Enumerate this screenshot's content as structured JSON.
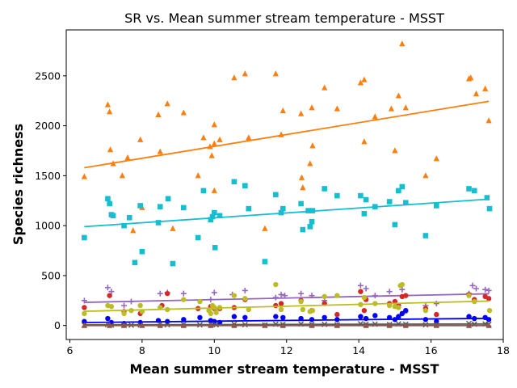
{
  "chart_data": {
    "type": "scatter",
    "title": "SR vs. Mean summer stream temperature - MSST",
    "xlabel": "Mean summer stream temperature - MSST",
    "ylabel": "Species richness",
    "xlim": [
      5.9,
      18.0
    ],
    "ylim": [
      -140,
      2960
    ],
    "xticks": [
      6,
      8,
      10,
      12,
      14,
      16,
      18
    ],
    "yticks": [
      0,
      500,
      1000,
      1500,
      2000,
      2500
    ],
    "grid": false,
    "legend": "none",
    "series": [
      {
        "marker": "triangle",
        "color": "#ff7f0e",
        "points": [
          [
            6.4,
            1490
          ],
          [
            7.05,
            2210
          ],
          [
            7.1,
            2140
          ],
          [
            7.12,
            1760
          ],
          [
            7.2,
            1620
          ],
          [
            7.45,
            1500
          ],
          [
            7.6,
            1680
          ],
          [
            7.75,
            950
          ],
          [
            7.95,
            1860
          ],
          [
            8.0,
            1180
          ],
          [
            8.45,
            2110
          ],
          [
            8.5,
            1740
          ],
          [
            8.7,
            2220
          ],
          [
            8.85,
            970
          ],
          [
            9.15,
            2130
          ],
          [
            9.55,
            1500
          ],
          [
            9.7,
            1880
          ],
          [
            9.88,
            1790
          ],
          [
            9.93,
            1700
          ],
          [
            10.0,
            2010
          ],
          [
            10.0,
            1820
          ],
          [
            10.0,
            1350
          ],
          [
            10.15,
            1860
          ],
          [
            10.55,
            2480
          ],
          [
            10.85,
            2520
          ],
          [
            10.95,
            1880
          ],
          [
            11.4,
            970
          ],
          [
            11.7,
            2520
          ],
          [
            11.85,
            1910
          ],
          [
            11.9,
            2150
          ],
          [
            12.4,
            2120
          ],
          [
            12.42,
            1480
          ],
          [
            12.45,
            1380
          ],
          [
            12.65,
            1620
          ],
          [
            12.72,
            1800
          ],
          [
            12.7,
            2180
          ],
          [
            13.05,
            2380
          ],
          [
            13.4,
            2170
          ],
          [
            14.05,
            2430
          ],
          [
            14.15,
            2460
          ],
          [
            14.15,
            1840
          ],
          [
            14.45,
            2090
          ],
          [
            14.9,
            2170
          ],
          [
            15.0,
            1750
          ],
          [
            15.1,
            2300
          ],
          [
            15.2,
            2820
          ],
          [
            15.3,
            2180
          ],
          [
            15.85,
            1500
          ],
          [
            16.15,
            1670
          ],
          [
            17.05,
            2470
          ],
          [
            17.1,
            2480
          ],
          [
            17.25,
            2320
          ],
          [
            17.5,
            2370
          ],
          [
            17.6,
            2050
          ]
        ],
        "trend": [
          [
            6.4,
            1580
          ],
          [
            17.6,
            2245
          ]
        ]
      },
      {
        "marker": "square",
        "color": "#17becf",
        "points": [
          [
            6.4,
            880
          ],
          [
            7.05,
            1270
          ],
          [
            7.1,
            1220
          ],
          [
            7.15,
            1110
          ],
          [
            7.2,
            1100
          ],
          [
            7.5,
            1000
          ],
          [
            7.65,
            1080
          ],
          [
            7.8,
            630
          ],
          [
            7.95,
            1200
          ],
          [
            8.0,
            740
          ],
          [
            8.45,
            1030
          ],
          [
            8.5,
            1190
          ],
          [
            8.72,
            1270
          ],
          [
            8.85,
            620
          ],
          [
            9.15,
            1180
          ],
          [
            9.55,
            880
          ],
          [
            9.7,
            1350
          ],
          [
            9.9,
            1060
          ],
          [
            9.95,
            1090
          ],
          [
            10.0,
            1130
          ],
          [
            10.02,
            780
          ],
          [
            10.15,
            1100
          ],
          [
            10.55,
            1440
          ],
          [
            10.85,
            1400
          ],
          [
            10.95,
            1170
          ],
          [
            11.4,
            640
          ],
          [
            11.7,
            1310
          ],
          [
            11.85,
            1130
          ],
          [
            11.9,
            1170
          ],
          [
            12.4,
            1220
          ],
          [
            12.45,
            960
          ],
          [
            12.6,
            1150
          ],
          [
            12.65,
            990
          ],
          [
            12.7,
            1040
          ],
          [
            12.72,
            1150
          ],
          [
            13.05,
            1370
          ],
          [
            13.4,
            1300
          ],
          [
            14.05,
            1300
          ],
          [
            14.15,
            1120
          ],
          [
            14.2,
            1260
          ],
          [
            14.45,
            1190
          ],
          [
            14.85,
            1240
          ],
          [
            15.0,
            1010
          ],
          [
            15.1,
            1350
          ],
          [
            15.2,
            1390
          ],
          [
            15.3,
            1230
          ],
          [
            15.85,
            900
          ],
          [
            16.15,
            1200
          ],
          [
            17.05,
            1370
          ],
          [
            17.2,
            1350
          ],
          [
            17.55,
            1280
          ],
          [
            17.62,
            1170
          ]
        ],
        "trend": [
          [
            6.4,
            990
          ],
          [
            17.6,
            1265
          ]
        ]
      },
      {
        "marker": "plus",
        "color": "#9467bd",
        "points": [
          [
            6.4,
            250
          ],
          [
            7.05,
            380
          ],
          [
            7.15,
            340
          ],
          [
            7.5,
            200
          ],
          [
            7.7,
            240
          ],
          [
            8.5,
            320
          ],
          [
            8.7,
            330
          ],
          [
            9.15,
            320
          ],
          [
            9.9,
            260
          ],
          [
            10.0,
            330
          ],
          [
            10.5,
            310
          ],
          [
            10.85,
            350
          ],
          [
            11.7,
            280
          ],
          [
            11.85,
            310
          ],
          [
            11.95,
            300
          ],
          [
            12.4,
            320
          ],
          [
            12.7,
            300
          ],
          [
            13.05,
            250
          ],
          [
            14.05,
            400
          ],
          [
            14.2,
            370
          ],
          [
            14.45,
            300
          ],
          [
            14.85,
            340
          ],
          [
            15.2,
            360
          ],
          [
            15.85,
            200
          ],
          [
            16.15,
            220
          ],
          [
            17.05,
            320
          ],
          [
            17.15,
            400
          ],
          [
            17.25,
            370
          ],
          [
            17.5,
            360
          ],
          [
            17.6,
            350
          ]
        ],
        "trend": [
          [
            6.4,
            232
          ],
          [
            17.6,
            318
          ]
        ]
      },
      {
        "marker": "circle",
        "color": "#d62728",
        "points": [
          [
            6.4,
            180
          ],
          [
            7.1,
            300
          ],
          [
            7.5,
            140
          ],
          [
            7.95,
            120
          ],
          [
            8.55,
            200
          ],
          [
            8.7,
            320
          ],
          [
            9.55,
            170
          ],
          [
            9.9,
            190
          ],
          [
            10.0,
            170
          ],
          [
            10.15,
            170
          ],
          [
            10.55,
            180
          ],
          [
            10.85,
            260
          ],
          [
            11.7,
            200
          ],
          [
            11.85,
            220
          ],
          [
            12.4,
            250
          ],
          [
            12.7,
            150
          ],
          [
            13.05,
            220
          ],
          [
            13.4,
            110
          ],
          [
            14.05,
            340
          ],
          [
            14.15,
            150
          ],
          [
            14.2,
            260
          ],
          [
            14.85,
            220
          ],
          [
            15.0,
            240
          ],
          [
            15.1,
            200
          ],
          [
            15.2,
            290
          ],
          [
            15.3,
            300
          ],
          [
            15.85,
            170
          ],
          [
            16.15,
            110
          ],
          [
            17.05,
            310
          ],
          [
            17.2,
            260
          ],
          [
            17.5,
            290
          ],
          [
            17.6,
            270
          ]
        ],
        "trend": []
      },
      {
        "marker": "circle",
        "color": "#bcbd22",
        "points": [
          [
            6.4,
            120
          ],
          [
            7.05,
            200
          ],
          [
            7.15,
            190
          ],
          [
            7.5,
            120
          ],
          [
            7.7,
            150
          ],
          [
            7.95,
            200
          ],
          [
            8.0,
            140
          ],
          [
            8.5,
            180
          ],
          [
            8.7,
            160
          ],
          [
            9.15,
            260
          ],
          [
            9.6,
            240
          ],
          [
            9.85,
            150
          ],
          [
            9.9,
            120
          ],
          [
            9.95,
            200
          ],
          [
            10.0,
            180
          ],
          [
            10.05,
            130
          ],
          [
            10.15,
            180
          ],
          [
            10.55,
            300
          ],
          [
            10.85,
            270
          ],
          [
            10.95,
            160
          ],
          [
            11.7,
            410
          ],
          [
            11.85,
            160
          ],
          [
            12.4,
            240
          ],
          [
            12.45,
            160
          ],
          [
            12.65,
            140
          ],
          [
            12.72,
            150
          ],
          [
            13.05,
            290
          ],
          [
            13.4,
            300
          ],
          [
            14.05,
            210
          ],
          [
            14.15,
            280
          ],
          [
            14.45,
            220
          ],
          [
            14.85,
            200
          ],
          [
            15.0,
            190
          ],
          [
            15.1,
            180
          ],
          [
            15.15,
            400
          ],
          [
            15.2,
            410
          ],
          [
            15.3,
            140
          ],
          [
            15.85,
            150
          ],
          [
            17.05,
            300
          ],
          [
            17.2,
            240
          ],
          [
            17.62,
            150
          ]
        ],
        "trend": [
          [
            6.4,
            142
          ],
          [
            17.6,
            245
          ]
        ]
      },
      {
        "marker": "circle",
        "color": "#0000ff",
        "points": [
          [
            6.4,
            40
          ],
          [
            7.05,
            70
          ],
          [
            7.15,
            30
          ],
          [
            7.5,
            20
          ],
          [
            7.95,
            30
          ],
          [
            8.45,
            50
          ],
          [
            8.7,
            40
          ],
          [
            9.15,
            60
          ],
          [
            9.6,
            80
          ],
          [
            9.9,
            50
          ],
          [
            10.0,
            40
          ],
          [
            10.15,
            30
          ],
          [
            10.55,
            90
          ],
          [
            10.85,
            80
          ],
          [
            11.7,
            90
          ],
          [
            11.9,
            80
          ],
          [
            12.4,
            70
          ],
          [
            12.7,
            60
          ],
          [
            13.05,
            80
          ],
          [
            13.4,
            60
          ],
          [
            14.05,
            90
          ],
          [
            14.2,
            70
          ],
          [
            14.45,
            100
          ],
          [
            14.85,
            80
          ],
          [
            15.0,
            60
          ],
          [
            15.1,
            90
          ],
          [
            15.2,
            120
          ],
          [
            15.3,
            150
          ],
          [
            15.85,
            60
          ],
          [
            16.15,
            40
          ],
          [
            17.05,
            90
          ],
          [
            17.2,
            70
          ],
          [
            17.5,
            80
          ],
          [
            17.6,
            60
          ]
        ],
        "trend": [
          [
            6.4,
            30
          ],
          [
            17.6,
            72
          ]
        ]
      },
      {
        "marker": "x",
        "color": "#555555",
        "points": [
          [
            6.4,
            5
          ],
          [
            7.05,
            10
          ],
          [
            7.15,
            5
          ],
          [
            7.5,
            8
          ],
          [
            7.7,
            4
          ],
          [
            7.95,
            6
          ],
          [
            8.5,
            12
          ],
          [
            8.7,
            8
          ],
          [
            9.15,
            10
          ],
          [
            9.6,
            6
          ],
          [
            9.9,
            14
          ],
          [
            10.05,
            8
          ],
          [
            10.55,
            12
          ],
          [
            10.85,
            9
          ],
          [
            11.4,
            5
          ],
          [
            11.7,
            14
          ],
          [
            11.9,
            10
          ],
          [
            12.4,
            16
          ],
          [
            12.7,
            10
          ],
          [
            13.05,
            12
          ],
          [
            13.4,
            8
          ],
          [
            14.05,
            18
          ],
          [
            14.2,
            12
          ],
          [
            14.45,
            14
          ],
          [
            14.85,
            10
          ],
          [
            15.1,
            16
          ],
          [
            15.3,
            12
          ],
          [
            15.85,
            8
          ],
          [
            16.15,
            10
          ],
          [
            17.05,
            20
          ],
          [
            17.2,
            14
          ],
          [
            17.5,
            16
          ],
          [
            17.6,
            12
          ]
        ],
        "trend": [
          [
            6.4,
            6
          ],
          [
            17.6,
            16
          ]
        ]
      },
      {
        "marker": "triangle",
        "color": "#8c564b",
        "points": [
          [
            6.4,
            0
          ],
          [
            7.1,
            0
          ],
          [
            7.5,
            0
          ],
          [
            8.0,
            0
          ],
          [
            8.5,
            0
          ],
          [
            9.15,
            0
          ],
          [
            9.9,
            0
          ],
          [
            10.55,
            0
          ],
          [
            11.4,
            0
          ],
          [
            11.9,
            0
          ],
          [
            12.7,
            0
          ],
          [
            13.4,
            0
          ],
          [
            14.2,
            0
          ],
          [
            14.85,
            0
          ],
          [
            15.3,
            0
          ],
          [
            16.15,
            0
          ],
          [
            17.05,
            0
          ],
          [
            17.6,
            0
          ]
        ],
        "trend": [
          [
            6.4,
            0
          ],
          [
            17.6,
            0
          ]
        ]
      }
    ]
  }
}
